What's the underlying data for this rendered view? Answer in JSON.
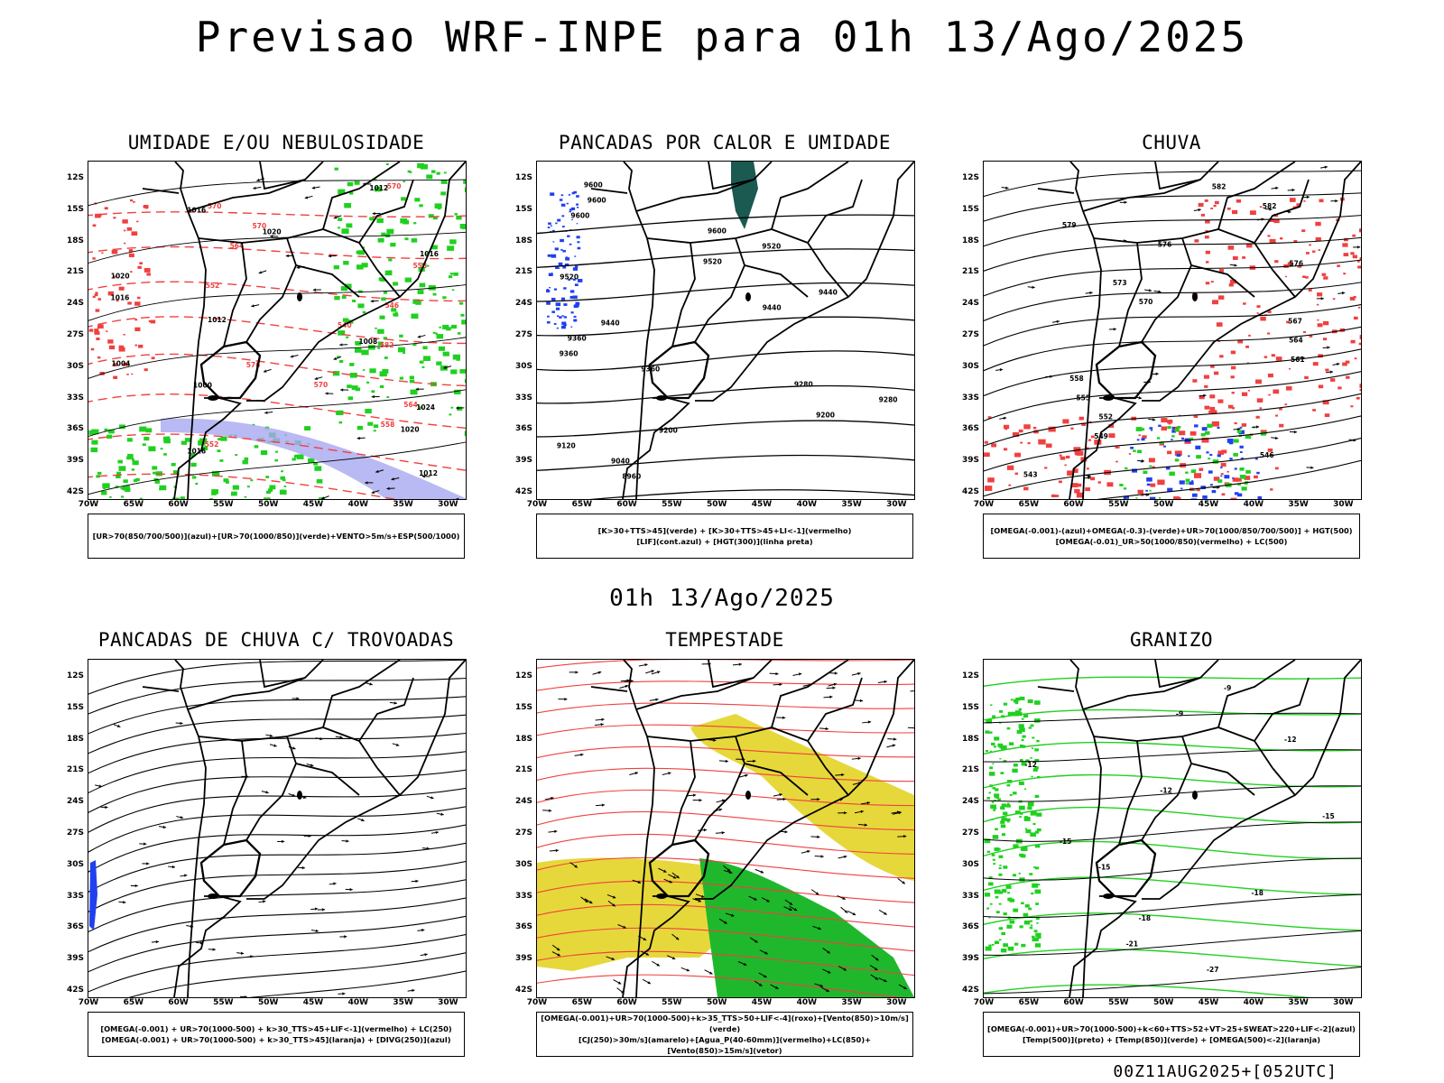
{
  "header": {
    "title": "Previsao WRF-INPE  para 01h 13/Ago/2025",
    "subtitle": "01h 13/Ago/2025",
    "stamp": "00Z11AUG2025+[052UTC]"
  },
  "axes": {
    "lat_labels": [
      "12S",
      "15S",
      "18S",
      "21S",
      "24S",
      "27S",
      "30S",
      "33S",
      "36S",
      "39S",
      "42S"
    ],
    "lon_labels": [
      "70W",
      "65W",
      "60W",
      "55W",
      "50W",
      "45W",
      "40W",
      "35W",
      "30W"
    ]
  },
  "colors": {
    "red": "#f04040",
    "green": "#20d020",
    "blue": "#2040f0",
    "lavender": "#a8a8f0",
    "yellow": "#e6d83a",
    "darkgreen": "#1a5a50"
  },
  "panels": [
    {
      "id": "umidade",
      "title": "UMIDADE E/OU NEBULOSIDADE",
      "legend": [
        "[UR>70(850/700/500)](azul)+[UR>70(1000/850)](verde)+VENTO>5m/s+ESP(500/1000)"
      ],
      "contour_labels": [
        "1012",
        "1016",
        "1020",
        "1016",
        "1020",
        "1016",
        "1012",
        "1008",
        "1004",
        "1000",
        "1024",
        "1020",
        "1016",
        "1012"
      ],
      "red_labels": [
        "570",
        "570",
        "570",
        "564",
        "558",
        "552",
        "546",
        "540",
        "582",
        "576",
        "570",
        "564",
        "558",
        "552"
      ]
    },
    {
      "id": "pancadas",
      "title": "PANCADAS POR CALOR E UMIDADE",
      "legend": [
        "[K>30+TTS>45](verde) + [K>30+TTS>45+LI<-1](vermelho)",
        "[LIF](cont.azul) + [HGT(300)](linha preta)"
      ],
      "contour_labels": [
        "9600",
        "9600",
        "9600",
        "9600",
        "9520",
        "9520",
        "9520",
        "9440",
        "9440",
        "9440",
        "9360",
        "9360",
        "9360",
        "9280",
        "9280",
        "9200",
        "9200",
        "9120",
        "9040",
        "8960"
      ]
    },
    {
      "id": "chuva",
      "title": "CHUVA",
      "legend": [
        "[OMEGA(-0.001)-(azul)+OMEGA(-0.3)-(verde)+UR>70(1000/850/700/500)] + HGT(500)",
        "[OMEGA(-0.01)_UR>50(1000/850)(vermelho) + LC(500)"
      ],
      "contour_labels": [
        "582",
        "582",
        "579",
        "576",
        "576",
        "573",
        "570",
        "567",
        "564",
        "561",
        "558",
        "555",
        "552",
        "549",
        "546",
        "543"
      ]
    },
    {
      "id": "trovoadas",
      "title": "PANCADAS DE CHUVA C/ TROVOADAS",
      "legend": [
        "[OMEGA(-0.001) + UR>70(1000-500) + k>30_TTS>45+LIF<-1](vermelho) + LC(250)",
        "[OMEGA(-0.001) + UR>70(1000-500) + k>30_TTS>45](laranja) + [DIVG(250)](azul)"
      ]
    },
    {
      "id": "tempestade",
      "title": "TEMPESTADE",
      "legend": [
        "[OMEGA(-0.001)+UR>70(1000-500)+k>35_TTS>50+LIF<-4](roxo)+[Vento(850)>10m/s](verde)",
        "[CJ(250)>30m/s](amarelo)+[Agua_P(40-60mm)](vermelho)+LC(850)+[Vento(850)>15m/s](vetor)"
      ]
    },
    {
      "id": "granizo",
      "title": "GRANIZO",
      "legend": [
        "[OMEGA(-0.001)+UR>70(1000-500)+k<60+TTS>52+VT>25+SWEAT>220+LIF<-2](azul)",
        "[Temp(500)](preto) + [Temp(850)](verde) + [OMEGA(500)<-2](laranja)"
      ],
      "contour_labels": [
        "-9",
        "-9",
        "-12",
        "-12",
        "-12",
        "-15",
        "-15",
        "-15",
        "-18",
        "-18",
        "-21",
        "-27"
      ]
    }
  ]
}
